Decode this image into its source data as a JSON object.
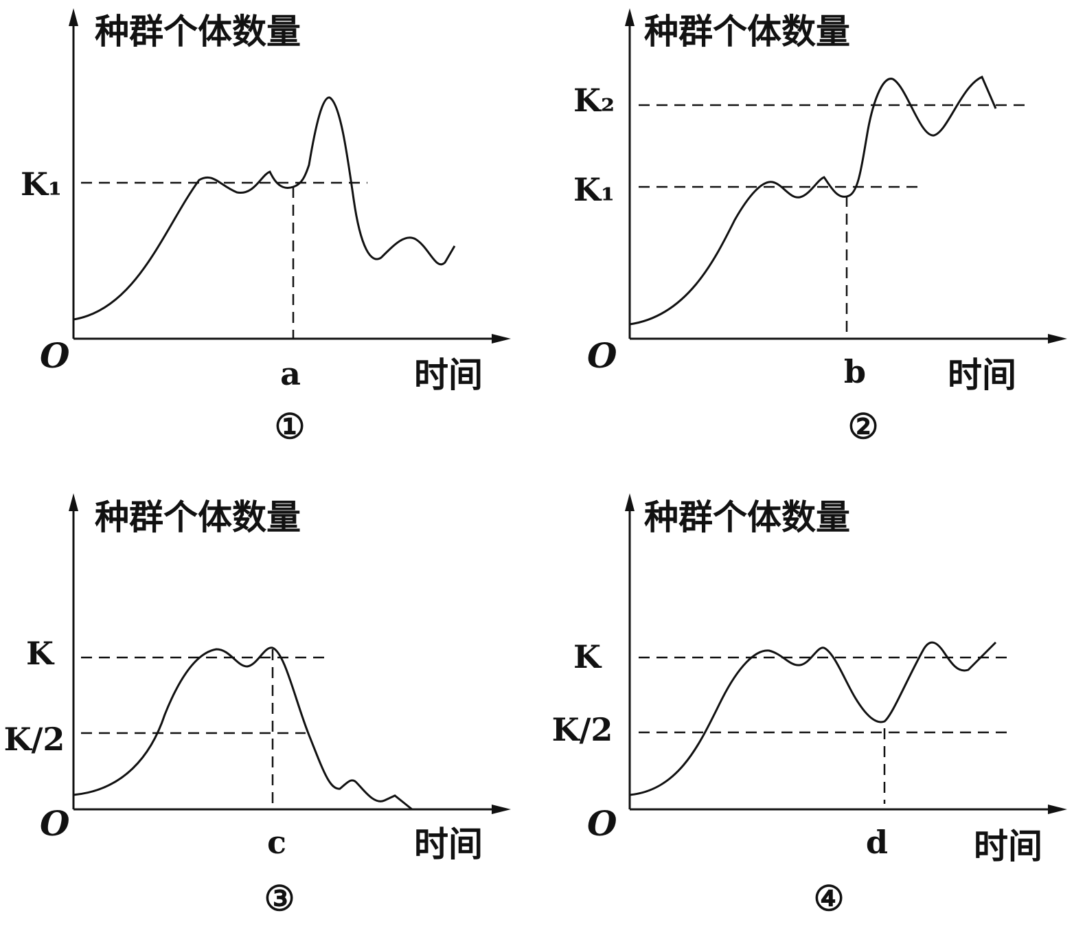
{
  "panels": [
    {
      "number": "①",
      "y_label": "种群个体数量",
      "x_label": "时间",
      "origin": "O",
      "marker": "a",
      "levels": [
        "K₁"
      ]
    },
    {
      "number": "②",
      "y_label": "种群个体数量",
      "x_label": "时间",
      "origin": "O",
      "marker": "b",
      "levels": [
        "K₂",
        "K₁"
      ]
    },
    {
      "number": "③",
      "y_label": "种群个体数量",
      "x_label": "时间",
      "origin": "O",
      "marker": "c",
      "levels": [
        "K",
        "K/2"
      ]
    },
    {
      "number": "④",
      "y_label": "种群个体数量",
      "x_label": "时间",
      "origin": "O",
      "marker": "d",
      "levels": [
        "K",
        "K/2"
      ]
    }
  ]
}
